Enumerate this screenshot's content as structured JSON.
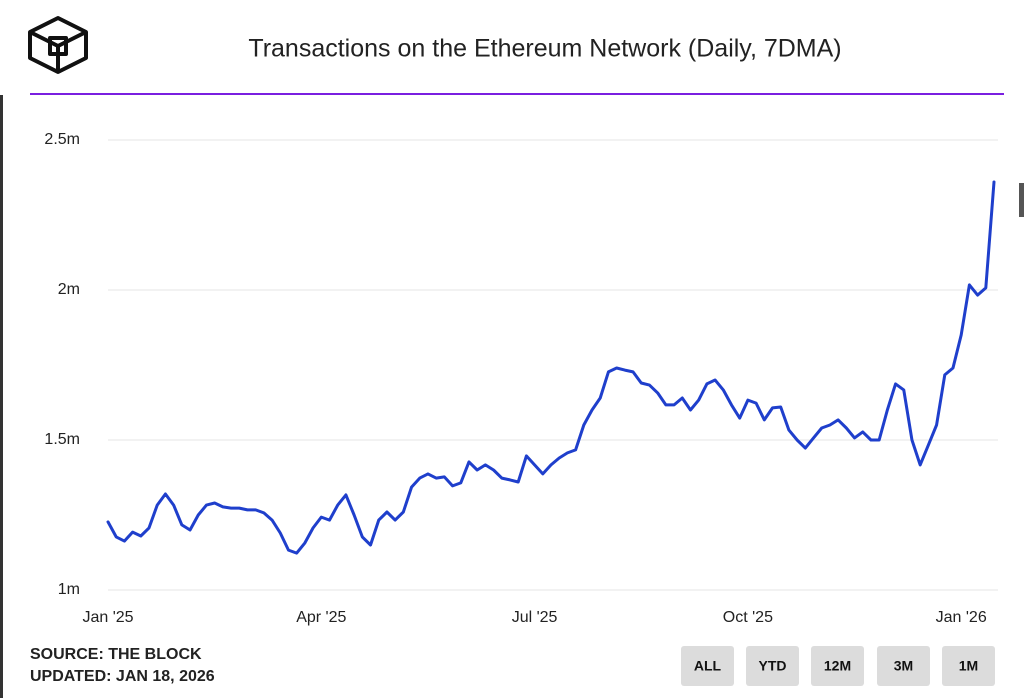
{
  "chart_data": {
    "type": "line",
    "title": "Transactions on the Ethereum Network (Daily, 7DMA)",
    "color": "#1f3fcc",
    "grid": true,
    "ylim": [
      1,
      2.5
    ],
    "yticks": [
      {
        "value": 1,
        "label": "1m"
      },
      {
        "value": 1.5,
        "label": "1.5m"
      },
      {
        "value": 2,
        "label": "2m"
      },
      {
        "value": 2.5,
        "label": "2.5m"
      }
    ],
    "categories": [
      "Jan '25",
      null,
      null,
      null,
      null,
      null,
      null,
      null,
      null,
      null,
      null,
      null,
      null,
      null,
      null,
      null,
      null,
      null,
      null,
      null,
      null,
      null,
      null,
      null,
      null,
      null,
      "Apr '25",
      null,
      null,
      null,
      null,
      null,
      null,
      null,
      null,
      null,
      null,
      null,
      null,
      null,
      null,
      null,
      null,
      null,
      null,
      null,
      null,
      null,
      null,
      null,
      null,
      null,
      "Jul '25",
      null,
      null,
      null,
      null,
      null,
      null,
      null,
      null,
      null,
      null,
      null,
      null,
      null,
      null,
      null,
      null,
      null,
      null,
      null,
      null,
      null,
      null,
      null,
      null,
      null,
      "Oct '25",
      null,
      null,
      null,
      null,
      null,
      null,
      null,
      null,
      null,
      null,
      null,
      null,
      null,
      null,
      null,
      null,
      null,
      null,
      null,
      null,
      null,
      null,
      null,
      null,
      null,
      "Jan '26",
      null,
      null,
      null,
      null
    ],
    "values": [
      1.227,
      1.177,
      1.163,
      1.193,
      1.18,
      1.207,
      1.283,
      1.32,
      1.283,
      1.217,
      1.2,
      1.25,
      1.283,
      1.29,
      1.277,
      1.273,
      1.273,
      1.267,
      1.267,
      1.257,
      1.233,
      1.19,
      1.133,
      1.123,
      1.157,
      1.207,
      1.243,
      1.233,
      1.283,
      1.317,
      1.25,
      1.177,
      1.15,
      1.233,
      1.26,
      1.233,
      1.26,
      1.343,
      1.373,
      1.387,
      1.373,
      1.377,
      1.347,
      1.357,
      1.427,
      1.4,
      1.417,
      1.4,
      1.373,
      1.367,
      1.36,
      1.447,
      1.417,
      1.387,
      1.417,
      1.44,
      1.457,
      1.467,
      1.55,
      1.6,
      1.64,
      1.727,
      1.74,
      1.733,
      1.727,
      1.69,
      1.683,
      1.657,
      1.617,
      1.617,
      1.64,
      1.6,
      1.633,
      1.687,
      1.7,
      1.667,
      1.617,
      1.573,
      1.633,
      1.623,
      1.567,
      1.607,
      1.61,
      1.533,
      1.5,
      1.473,
      1.507,
      1.54,
      1.55,
      1.567,
      1.54,
      1.507,
      1.527,
      1.5,
      1.5,
      1.6,
      1.687,
      1.667,
      1.5,
      1.417,
      1.483,
      1.55,
      1.717,
      1.74,
      1.85,
      2.017,
      1.983,
      2.007,
      2.36
    ]
  },
  "footer": {
    "source": "SOURCE: THE BLOCK",
    "updated": "UPDATED: JAN 18, 2026",
    "buttons": [
      "ALL",
      "YTD",
      "12M",
      "3M",
      "1M"
    ]
  }
}
